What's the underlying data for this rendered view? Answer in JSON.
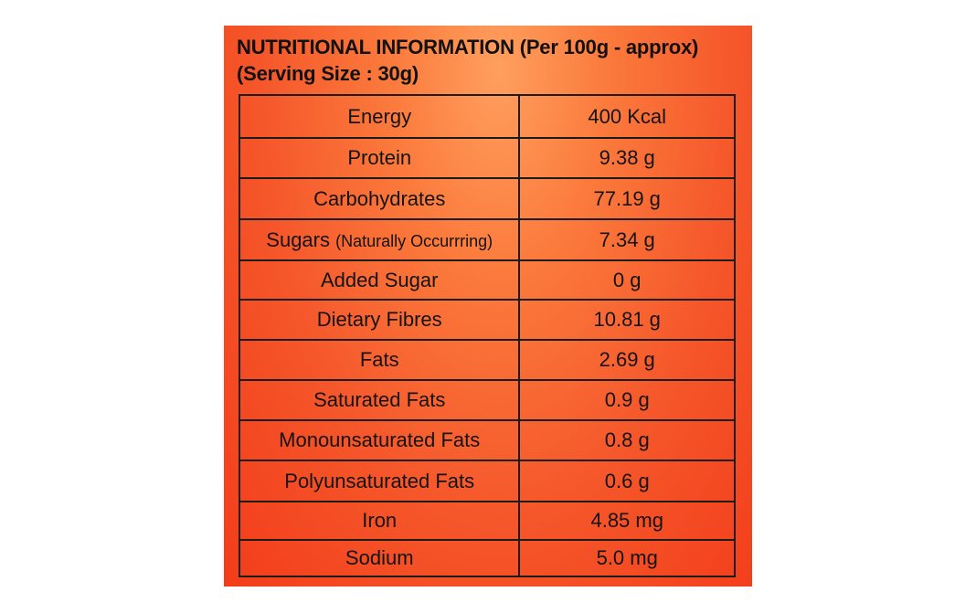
{
  "header": {
    "title": "NUTRITIONAL INFORMATION (Per 100g - approx)",
    "serving": "(Serving Size : 30g)"
  },
  "rows": [
    {
      "nutrient": "Energy",
      "note": "",
      "amount": "400 Kcal"
    },
    {
      "nutrient": "Protein",
      "note": "",
      "amount": "9.38 g"
    },
    {
      "nutrient": "Carbohydrates",
      "note": "",
      "amount": "77.19 g"
    },
    {
      "nutrient": "Sugars",
      "note": "(Naturally Occurrring)",
      "amount": "7.34 g"
    },
    {
      "nutrient": "Added Sugar",
      "note": "",
      "amount": "0 g"
    },
    {
      "nutrient": "Dietary Fibres",
      "note": "",
      "amount": "10.81 g"
    },
    {
      "nutrient": "Fats",
      "note": "",
      "amount": "2.69 g"
    },
    {
      "nutrient": "Saturated Fats",
      "note": "",
      "amount": "0.9 g"
    },
    {
      "nutrient": "Monounsaturated Fats",
      "note": "",
      "amount": "0.8 g"
    },
    {
      "nutrient": "Polyunsaturated Fats",
      "note": "",
      "amount": "0.6 g"
    },
    {
      "nutrient": "Iron",
      "note": "",
      "amount": "4.85 mg"
    },
    {
      "nutrient": "Sodium",
      "note": "",
      "amount": "5.0 mg"
    }
  ],
  "colors": {
    "panel_light": "#ff9f5e",
    "panel_dark": "#f33c1a",
    "border": "#1c1c1c",
    "text": "#141414"
  }
}
